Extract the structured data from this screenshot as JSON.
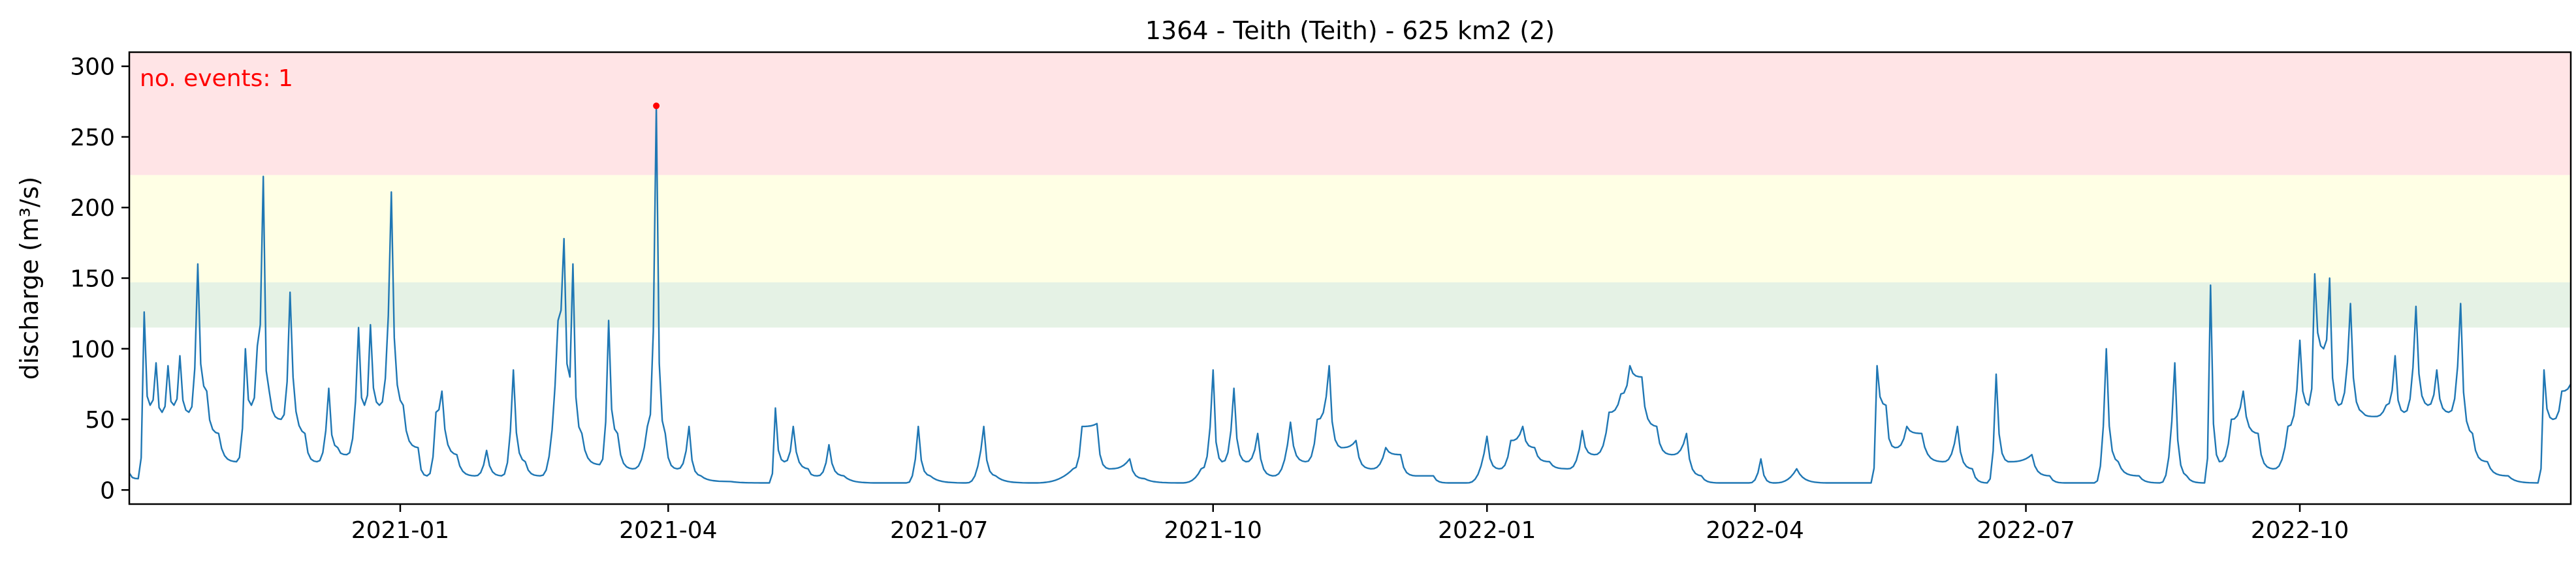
{
  "chart_data": {
    "type": "line",
    "title": "1364 - Teith (Teith) - 625 km2 (2)",
    "xlabel": "",
    "ylabel": "discharge (m³/s)",
    "x_range": [
      "2020-10-02",
      "2022-12-31"
    ],
    "ylim": [
      -10,
      310
    ],
    "y_ticks": [
      0,
      50,
      100,
      150,
      200,
      250,
      300
    ],
    "x_ticks": [
      {
        "date": "2021-01-01",
        "label": "2021-01"
      },
      {
        "date": "2021-04-01",
        "label": "2021-04"
      },
      {
        "date": "2021-07-01",
        "label": "2021-07"
      },
      {
        "date": "2021-10-01",
        "label": "2021-10"
      },
      {
        "date": "2022-01-01",
        "label": "2022-01"
      },
      {
        "date": "2022-04-01",
        "label": "2022-04"
      },
      {
        "date": "2022-07-01",
        "label": "2022-07"
      },
      {
        "date": "2022-10-01",
        "label": "2022-10"
      }
    ],
    "grid": false,
    "bands": [
      {
        "from": 115,
        "to": 147,
        "color": "#e5f2e5"
      },
      {
        "from": 147,
        "to": 223,
        "color": "#ffffe5"
      },
      {
        "from": 223,
        "to": 310,
        "color": "#ffe4e6"
      }
    ],
    "line_color": "#1f77b4",
    "event_color": "#ff0000",
    "events": [
      {
        "date": "2021-03-28",
        "value": 272
      }
    ],
    "annotation": "no. events: 1",
    "series": [
      {
        "peaks": [
          [
            "2020-10-02",
            12
          ],
          [
            "2020-10-05",
            8
          ],
          [
            "2020-10-07",
            126
          ],
          [
            "2020-10-09",
            60
          ],
          [
            "2020-10-11",
            90
          ],
          [
            "2020-10-13",
            55
          ],
          [
            "2020-10-15",
            88
          ],
          [
            "2020-10-17",
            60
          ],
          [
            "2020-10-19",
            95
          ],
          [
            "2020-10-22",
            55
          ],
          [
            "2020-10-25",
            160
          ],
          [
            "2020-10-28",
            70
          ],
          [
            "2020-11-01",
            40
          ],
          [
            "2020-11-07",
            20
          ],
          [
            "2020-11-10",
            100
          ],
          [
            "2020-11-12",
            60
          ],
          [
            "2020-11-14",
            102
          ],
          [
            "2020-11-16",
            222
          ],
          [
            "2020-11-18",
            70
          ],
          [
            "2020-11-22",
            50
          ],
          [
            "2020-11-25",
            140
          ],
          [
            "2020-11-30",
            40
          ],
          [
            "2020-12-04",
            20
          ],
          [
            "2020-12-08",
            72
          ],
          [
            "2020-12-11",
            30
          ],
          [
            "2020-12-14",
            25
          ],
          [
            "2020-12-18",
            115
          ],
          [
            "2020-12-20",
            60
          ],
          [
            "2020-12-22",
            117
          ],
          [
            "2020-12-25",
            60
          ],
          [
            "2020-12-29",
            211
          ],
          [
            "2021-01-02",
            60
          ],
          [
            "2021-01-07",
            30
          ],
          [
            "2021-01-10",
            10
          ],
          [
            "2021-01-13",
            55
          ],
          [
            "2021-01-15",
            70
          ],
          [
            "2021-01-20",
            25
          ],
          [
            "2021-01-26",
            10
          ],
          [
            "2021-01-30",
            28
          ],
          [
            "2021-02-04",
            10
          ],
          [
            "2021-02-08",
            85
          ],
          [
            "2021-02-12",
            20
          ],
          [
            "2021-02-17",
            10
          ],
          [
            "2021-02-23",
            120
          ],
          [
            "2021-02-25",
            178
          ],
          [
            "2021-02-27",
            80
          ],
          [
            "2021-02-28",
            160
          ],
          [
            "2021-03-03",
            40
          ],
          [
            "2021-03-09",
            18
          ],
          [
            "2021-03-12",
            120
          ],
          [
            "2021-03-15",
            40
          ],
          [
            "2021-03-20",
            15
          ],
          [
            "2021-03-25",
            45
          ],
          [
            "2021-03-28",
            272
          ],
          [
            "2021-03-31",
            40
          ],
          [
            "2021-04-04",
            15
          ],
          [
            "2021-04-08",
            45
          ],
          [
            "2021-04-12",
            10
          ],
          [
            "2021-04-22",
            6
          ],
          [
            "2021-05-05",
            5
          ],
          [
            "2021-05-07",
            58
          ],
          [
            "2021-05-10",
            20
          ],
          [
            "2021-05-13",
            45
          ],
          [
            "2021-05-18",
            15
          ],
          [
            "2021-05-21",
            10
          ],
          [
            "2021-05-25",
            32
          ],
          [
            "2021-05-30",
            10
          ],
          [
            "2021-06-10",
            5
          ],
          [
            "2021-06-20",
            5
          ],
          [
            "2021-06-24",
            45
          ],
          [
            "2021-06-28",
            10
          ],
          [
            "2021-07-10",
            5
          ],
          [
            "2021-07-16",
            45
          ],
          [
            "2021-07-20",
            10
          ],
          [
            "2021-08-01",
            5
          ],
          [
            "2021-08-15",
            15
          ],
          [
            "2021-08-18",
            45
          ],
          [
            "2021-08-23",
            47
          ],
          [
            "2021-08-27",
            15
          ],
          [
            "2021-09-03",
            22
          ],
          [
            "2021-09-08",
            8
          ],
          [
            "2021-09-20",
            5
          ],
          [
            "2021-09-27",
            15
          ],
          [
            "2021-10-01",
            85
          ],
          [
            "2021-10-04",
            20
          ],
          [
            "2021-10-08",
            72
          ],
          [
            "2021-10-12",
            20
          ],
          [
            "2021-10-16",
            40
          ],
          [
            "2021-10-21",
            10
          ],
          [
            "2021-10-27",
            48
          ],
          [
            "2021-11-01",
            20
          ],
          [
            "2021-11-05",
            50
          ],
          [
            "2021-11-09",
            88
          ],
          [
            "2021-11-13",
            30
          ],
          [
            "2021-11-18",
            35
          ],
          [
            "2021-11-23",
            15
          ],
          [
            "2021-11-28",
            30
          ],
          [
            "2021-12-03",
            25
          ],
          [
            "2021-12-08",
            10
          ],
          [
            "2021-12-14",
            10
          ],
          [
            "2021-12-19",
            5
          ],
          [
            "2021-12-25",
            5
          ],
          [
            "2022-01-01",
            38
          ],
          [
            "2022-01-05",
            15
          ],
          [
            "2022-01-09",
            35
          ],
          [
            "2022-01-13",
            45
          ],
          [
            "2022-01-17",
            30
          ],
          [
            "2022-01-22",
            20
          ],
          [
            "2022-01-28",
            15
          ],
          [
            "2022-02-02",
            42
          ],
          [
            "2022-02-06",
            25
          ],
          [
            "2022-02-11",
            55
          ],
          [
            "2022-02-15",
            68
          ],
          [
            "2022-02-18",
            88
          ],
          [
            "2022-02-22",
            80
          ],
          [
            "2022-02-27",
            45
          ],
          [
            "2022-03-04",
            25
          ],
          [
            "2022-03-09",
            40
          ],
          [
            "2022-03-14",
            10
          ],
          [
            "2022-03-20",
            5
          ],
          [
            "2022-03-30",
            5
          ],
          [
            "2022-04-03",
            22
          ],
          [
            "2022-04-07",
            5
          ],
          [
            "2022-04-15",
            15
          ],
          [
            "2022-04-25",
            5
          ],
          [
            "2022-05-10",
            5
          ],
          [
            "2022-05-12",
            88
          ],
          [
            "2022-05-15",
            60
          ],
          [
            "2022-05-18",
            30
          ],
          [
            "2022-05-22",
            45
          ],
          [
            "2022-05-27",
            40
          ],
          [
            "2022-06-03",
            20
          ],
          [
            "2022-06-08",
            45
          ],
          [
            "2022-06-13",
            15
          ],
          [
            "2022-06-18",
            5
          ],
          [
            "2022-06-21",
            82
          ],
          [
            "2022-06-25",
            20
          ],
          [
            "2022-07-03",
            25
          ],
          [
            "2022-07-09",
            10
          ],
          [
            "2022-07-14",
            5
          ],
          [
            "2022-07-24",
            5
          ],
          [
            "2022-07-28",
            100
          ],
          [
            "2022-08-01",
            20
          ],
          [
            "2022-08-08",
            10
          ],
          [
            "2022-08-15",
            5
          ],
          [
            "2022-08-20",
            90
          ],
          [
            "2022-08-24",
            10
          ],
          [
            "2022-08-30",
            5
          ],
          [
            "2022-09-01",
            145
          ],
          [
            "2022-09-04",
            20
          ],
          [
            "2022-09-08",
            50
          ],
          [
            "2022-09-12",
            70
          ],
          [
            "2022-09-17",
            40
          ],
          [
            "2022-09-22",
            15
          ],
          [
            "2022-09-27",
            45
          ],
          [
            "2022-10-01",
            106
          ],
          [
            "2022-10-04",
            60
          ],
          [
            "2022-10-06",
            153
          ],
          [
            "2022-10-09",
            100
          ],
          [
            "2022-10-11",
            150
          ],
          [
            "2022-10-14",
            60
          ],
          [
            "2022-10-18",
            132
          ],
          [
            "2022-10-22",
            55
          ],
          [
            "2022-10-26",
            52
          ],
          [
            "2022-10-30",
            60
          ],
          [
            "2022-11-02",
            95
          ],
          [
            "2022-11-05",
            55
          ],
          [
            "2022-11-09",
            130
          ],
          [
            "2022-11-13",
            60
          ],
          [
            "2022-11-16",
            85
          ],
          [
            "2022-11-20",
            55
          ],
          [
            "2022-11-24",
            132
          ],
          [
            "2022-11-28",
            40
          ],
          [
            "2022-12-03",
            20
          ],
          [
            "2022-12-10",
            10
          ],
          [
            "2022-12-20",
            5
          ],
          [
            "2022-12-22",
            85
          ],
          [
            "2022-12-25",
            50
          ],
          [
            "2022-12-28",
            70
          ],
          [
            "2022-12-31",
            75
          ]
        ]
      }
    ]
  }
}
